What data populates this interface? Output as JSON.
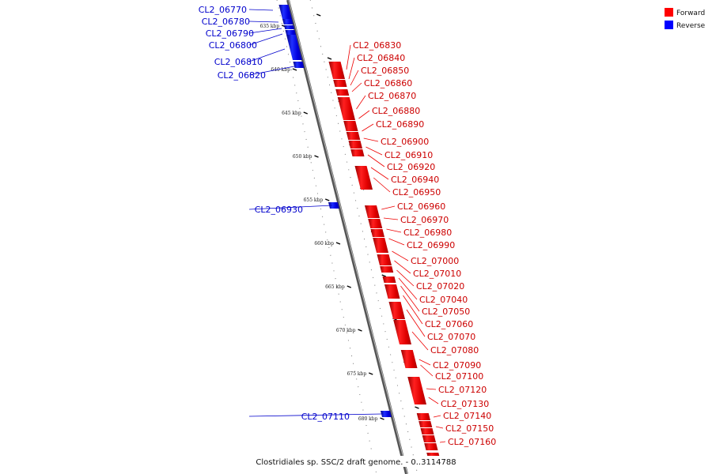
{
  "caption": "Clostridiales sp. SSC/2 draft genome. - 0..3114788",
  "legend": [
    {
      "label": "Forward",
      "color": "#ff0000"
    },
    {
      "label": "Reverse",
      "color": "#0000ff"
    }
  ],
  "scale_labels": [
    "635 kbp",
    "640 kbp",
    "645 kbp",
    "650 kbp",
    "655 kbp",
    "660 kbp",
    "665 kbp",
    "670 kbp",
    "675 kbp",
    "680 kbp"
  ],
  "reverse_genes": [
    "CL2_06770",
    "CL2_06780",
    "CL2_06790",
    "CL2_06800",
    "CL2_06810",
    "CL2_06820",
    "CL2_06930",
    "CL2_07110"
  ],
  "forward_genes": [
    "CL2_06830",
    "CL2_06840",
    "CL2_06850",
    "CL2_06860",
    "CL2_06870",
    "CL2_06880",
    "CL2_06890",
    "CL2_06900",
    "CL2_06910",
    "CL2_06920",
    "CL2_06940",
    "CL2_06950",
    "CL2_06960",
    "CL2_06970",
    "CL2_06980",
    "CL2_06990",
    "CL2_07000",
    "CL2_07010",
    "CL2_07020",
    "CL2_07040",
    "CL2_07050",
    "CL2_07060",
    "CL2_07070",
    "CL2_07080",
    "CL2_07090",
    "CL2_07100",
    "CL2_07120",
    "CL2_07130",
    "CL2_07140",
    "CL2_07150",
    "CL2_07160"
  ]
}
